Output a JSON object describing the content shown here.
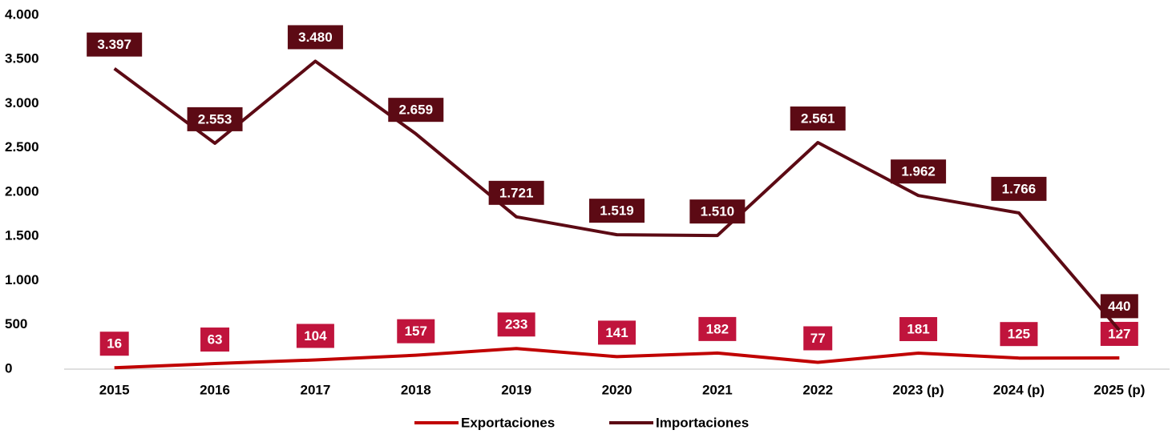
{
  "chart_data": {
    "type": "line",
    "categories": [
      "2015",
      "2016",
      "2017",
      "2018",
      "2019",
      "2020",
      "2021",
      "2022",
      "2023 (p)",
      "2024 (p)",
      "2025 (p)"
    ],
    "series": [
      {
        "name": "Exportaciones",
        "color": "#c00000",
        "label_color": "#c0143c",
        "values": [
          16,
          63,
          104,
          157,
          233,
          141,
          182,
          77,
          181,
          125,
          127
        ]
      },
      {
        "name": "Importaciones",
        "color": "#5c0a14",
        "label_color": "#5c0a14",
        "values": [
          3397,
          2553,
          3480,
          2659,
          1721,
          1519,
          1510,
          2561,
          1962,
          1766,
          440
        ],
        "value_labels": [
          "3.397",
          "2.553",
          "3.480",
          "2.659",
          "1.721",
          "1.519",
          "1.510",
          "2.561",
          "1.962",
          "1.766",
          "440"
        ]
      }
    ],
    "ylim": [
      0,
      4000
    ],
    "yticks": [
      0,
      500,
      {
        "value": 1000,
        "label": "1.000"
      },
      {
        "value": 1500,
        "label": "1.500"
      },
      {
        "value": 2000,
        "label": "2.000"
      },
      {
        "value": 2500,
        "label": "2.500"
      },
      {
        "value": 3000,
        "label": "3.000"
      },
      {
        "value": 3500,
        "label": "3.500"
      },
      {
        "value": 4000,
        "label": "4.000"
      }
    ],
    "legend": "bottom"
  }
}
